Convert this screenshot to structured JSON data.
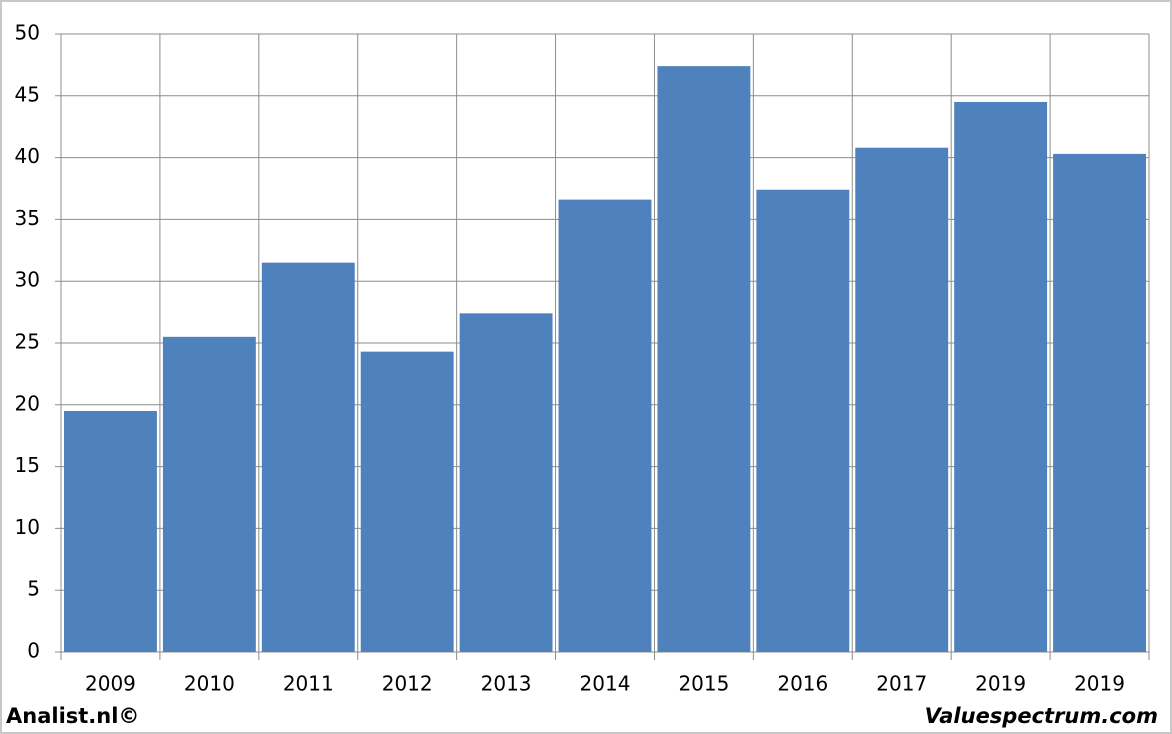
{
  "chart_data": {
    "type": "bar",
    "categories": [
      "2009",
      "2010",
      "2011",
      "2012",
      "2013",
      "2014",
      "2015",
      "2016",
      "2017",
      "2019",
      "2019"
    ],
    "values": [
      19.5,
      25.5,
      31.5,
      24.3,
      27.4,
      36.6,
      47.4,
      37.4,
      40.8,
      44.5,
      40.3
    ],
    "color": "#4f81bd",
    "ylim": [
      0,
      50
    ],
    "yticks": [
      0,
      5,
      10,
      15,
      20,
      25,
      30,
      35,
      40,
      45,
      50
    ],
    "grid": true,
    "annotations": [
      "Analist.nl©",
      "Valuespectrum.com"
    ]
  }
}
